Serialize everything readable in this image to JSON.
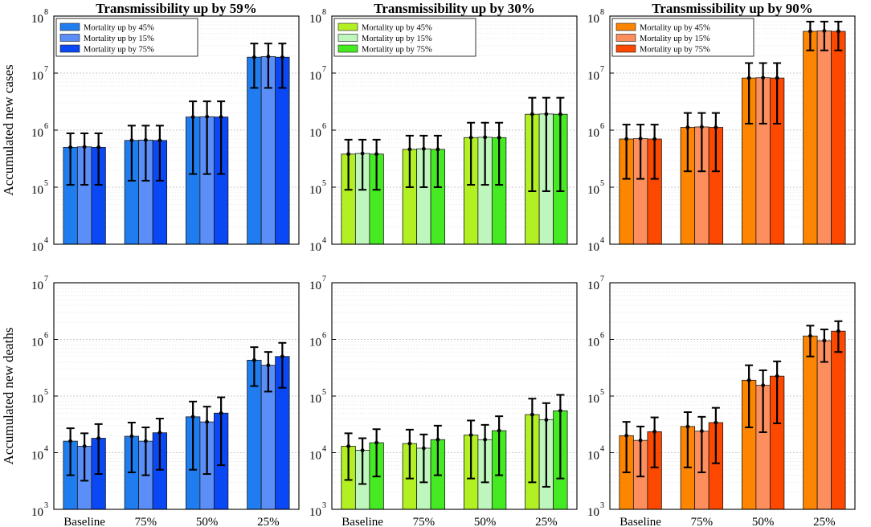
{
  "chart_data": {
    "type": "bar",
    "y_scale": "log",
    "categories": [
      "Baseline",
      "75%",
      "50%",
      "25%"
    ],
    "row_ylabels": [
      "Accumulated new cases",
      "Accumulated new deaths"
    ],
    "row_ylims": [
      [
        10000,
        100000000
      ],
      [
        1000,
        10000000
      ]
    ],
    "panels": [
      {
        "title": "Transmissibility up by 59%",
        "colors": [
          "#1f7df0",
          "#5b8ef7",
          "#0a48f5"
        ],
        "legend": [
          "Mortality up by 45%",
          "Mortality up by 15%",
          "Mortality up by 75%"
        ],
        "rows": [
          [
            [
              {
                "v": 500000,
                "lo": 110000,
                "hi": 880000
              },
              {
                "v": 510000,
                "lo": 110000,
                "hi": 880000
              },
              {
                "v": 500000,
                "lo": 110000,
                "hi": 880000
              }
            ],
            [
              {
                "v": 660000,
                "lo": 130000,
                "hi": 1200000
              },
              {
                "v": 670000,
                "lo": 130000,
                "hi": 1200000
              },
              {
                "v": 660000,
                "lo": 130000,
                "hi": 1200000
              }
            ],
            [
              {
                "v": 1700000,
                "lo": 170000,
                "hi": 3200000
              },
              {
                "v": 1720000,
                "lo": 170000,
                "hi": 3200000
              },
              {
                "v": 1700000,
                "lo": 170000,
                "hi": 3200000
              }
            ],
            [
              {
                "v": 19000000,
                "lo": 5500000,
                "hi": 33000000
              },
              {
                "v": 19500000,
                "lo": 5500000,
                "hi": 33000000
              },
              {
                "v": 19000000,
                "lo": 5500000,
                "hi": 33000000
              }
            ]
          ],
          [
            [
              {
                "v": 16000,
                "lo": 4000,
                "hi": 27000
              },
              {
                "v": 13000,
                "lo": 3200,
                "hi": 22000
              },
              {
                "v": 18000,
                "lo": 4200,
                "hi": 32000
              }
            ],
            [
              {
                "v": 19500,
                "lo": 4500,
                "hi": 34000
              },
              {
                "v": 16000,
                "lo": 4000,
                "hi": 28000
              },
              {
                "v": 22500,
                "lo": 5000,
                "hi": 40000
              }
            ],
            [
              {
                "v": 43000,
                "lo": 5000,
                "hi": 80000
              },
              {
                "v": 35000,
                "lo": 4200,
                "hi": 65000
              },
              {
                "v": 50000,
                "lo": 6000,
                "hi": 95000
              }
            ],
            [
              {
                "v": 430000,
                "lo": 150000,
                "hi": 730000
              },
              {
                "v": 350000,
                "lo": 120000,
                "hi": 600000
              },
              {
                "v": 500000,
                "lo": 140000,
                "hi": 870000
              }
            ]
          ]
        ]
      },
      {
        "title": "Transmissibility up by 30%",
        "colors": [
          "#b2f024",
          "#bff6bd",
          "#46ea22"
        ],
        "legend": [
          "Mortality up by 45%",
          "Mortality up by 15%",
          "Mortality up by 75%"
        ],
        "rows": [
          [
            [
              {
                "v": 380000,
                "lo": 90000,
                "hi": 680000
              },
              {
                "v": 390000,
                "lo": 90000,
                "hi": 680000
              },
              {
                "v": 380000,
                "lo": 90000,
                "hi": 680000
              }
            ],
            [
              {
                "v": 460000,
                "lo": 100000,
                "hi": 800000
              },
              {
                "v": 470000,
                "lo": 100000,
                "hi": 800000
              },
              {
                "v": 460000,
                "lo": 100000,
                "hi": 800000
              }
            ],
            [
              {
                "v": 740000,
                "lo": 110000,
                "hi": 1350000
              },
              {
                "v": 750000,
                "lo": 110000,
                "hi": 1350000
              },
              {
                "v": 740000,
                "lo": 110000,
                "hi": 1350000
              }
            ],
            [
              {
                "v": 1900000,
                "lo": 85000,
                "hi": 3700000
              },
              {
                "v": 1920000,
                "lo": 85000,
                "hi": 3700000
              },
              {
                "v": 1900000,
                "lo": 85000,
                "hi": 3700000
              }
            ]
          ],
          [
            [
              {
                "v": 13000,
                "lo": 3300,
                "hi": 22000
              },
              {
                "v": 11000,
                "lo": 2800,
                "hi": 18000
              },
              {
                "v": 15000,
                "lo": 3800,
                "hi": 26000
              }
            ],
            [
              {
                "v": 14500,
                "lo": 3500,
                "hi": 25500
              },
              {
                "v": 12000,
                "lo": 3000,
                "hi": 21000
              },
              {
                "v": 17000,
                "lo": 4000,
                "hi": 30000
              }
            ],
            [
              {
                "v": 20500,
                "lo": 3500,
                "hi": 37000
              },
              {
                "v": 17000,
                "lo": 3000,
                "hi": 31000
              },
              {
                "v": 24500,
                "lo": 4000,
                "hi": 44000
              }
            ],
            [
              {
                "v": 47000,
                "lo": 3000,
                "hi": 90000
              },
              {
                "v": 38000,
                "lo": 2500,
                "hi": 75000
              },
              {
                "v": 55000,
                "lo": 3500,
                "hi": 105000
              }
            ]
          ]
        ]
      },
      {
        "title": "Transmissibility up by 90%",
        "colors": [
          "#fe8500",
          "#fd8e5e",
          "#fd4800"
        ],
        "legend": [
          "Mortality up by 45%",
          "Mortality up by 15%",
          "Mortality up by 75%"
        ],
        "rows": [
          [
            [
              {
                "v": 700000,
                "lo": 140000,
                "hi": 1250000
              },
              {
                "v": 710000,
                "lo": 140000,
                "hi": 1250000
              },
              {
                "v": 700000,
                "lo": 140000,
                "hi": 1250000
              }
            ],
            [
              {
                "v": 1120000,
                "lo": 190000,
                "hi": 2000000
              },
              {
                "v": 1140000,
                "lo": 190000,
                "hi": 2000000
              },
              {
                "v": 1120000,
                "lo": 190000,
                "hi": 2000000
              }
            ],
            [
              {
                "v": 8200000,
                "lo": 1300000,
                "hi": 15000000
              },
              {
                "v": 8300000,
                "lo": 1300000,
                "hi": 15000000
              },
              {
                "v": 8200000,
                "lo": 1300000,
                "hi": 15000000
              }
            ],
            [
              {
                "v": 54000000,
                "lo": 25000000,
                "hi": 80000000
              },
              {
                "v": 55000000,
                "lo": 25000000,
                "hi": 80000000
              },
              {
                "v": 54000000,
                "lo": 25000000,
                "hi": 80000000
              }
            ]
          ],
          [
            [
              {
                "v": 20000,
                "lo": 4500,
                "hi": 35000
              },
              {
                "v": 16500,
                "lo": 3800,
                "hi": 29000
              },
              {
                "v": 23500,
                "lo": 5500,
                "hi": 42000
              }
            ],
            [
              {
                "v": 29000,
                "lo": 5500,
                "hi": 52000
              },
              {
                "v": 24000,
                "lo": 4500,
                "hi": 43000
              },
              {
                "v": 34000,
                "lo": 6500,
                "hi": 62000
              }
            ],
            [
              {
                "v": 190000,
                "lo": 28000,
                "hi": 350000
              },
              {
                "v": 155000,
                "lo": 23000,
                "hi": 285000
              },
              {
                "v": 225000,
                "lo": 33000,
                "hi": 410000
              }
            ],
            [
              {
                "v": 1150000,
                "lo": 500000,
                "hi": 1750000
              },
              {
                "v": 950000,
                "lo": 400000,
                "hi": 1500000
              },
              {
                "v": 1400000,
                "lo": 600000,
                "hi": 2100000
              }
            ]
          ]
        ]
      }
    ]
  }
}
